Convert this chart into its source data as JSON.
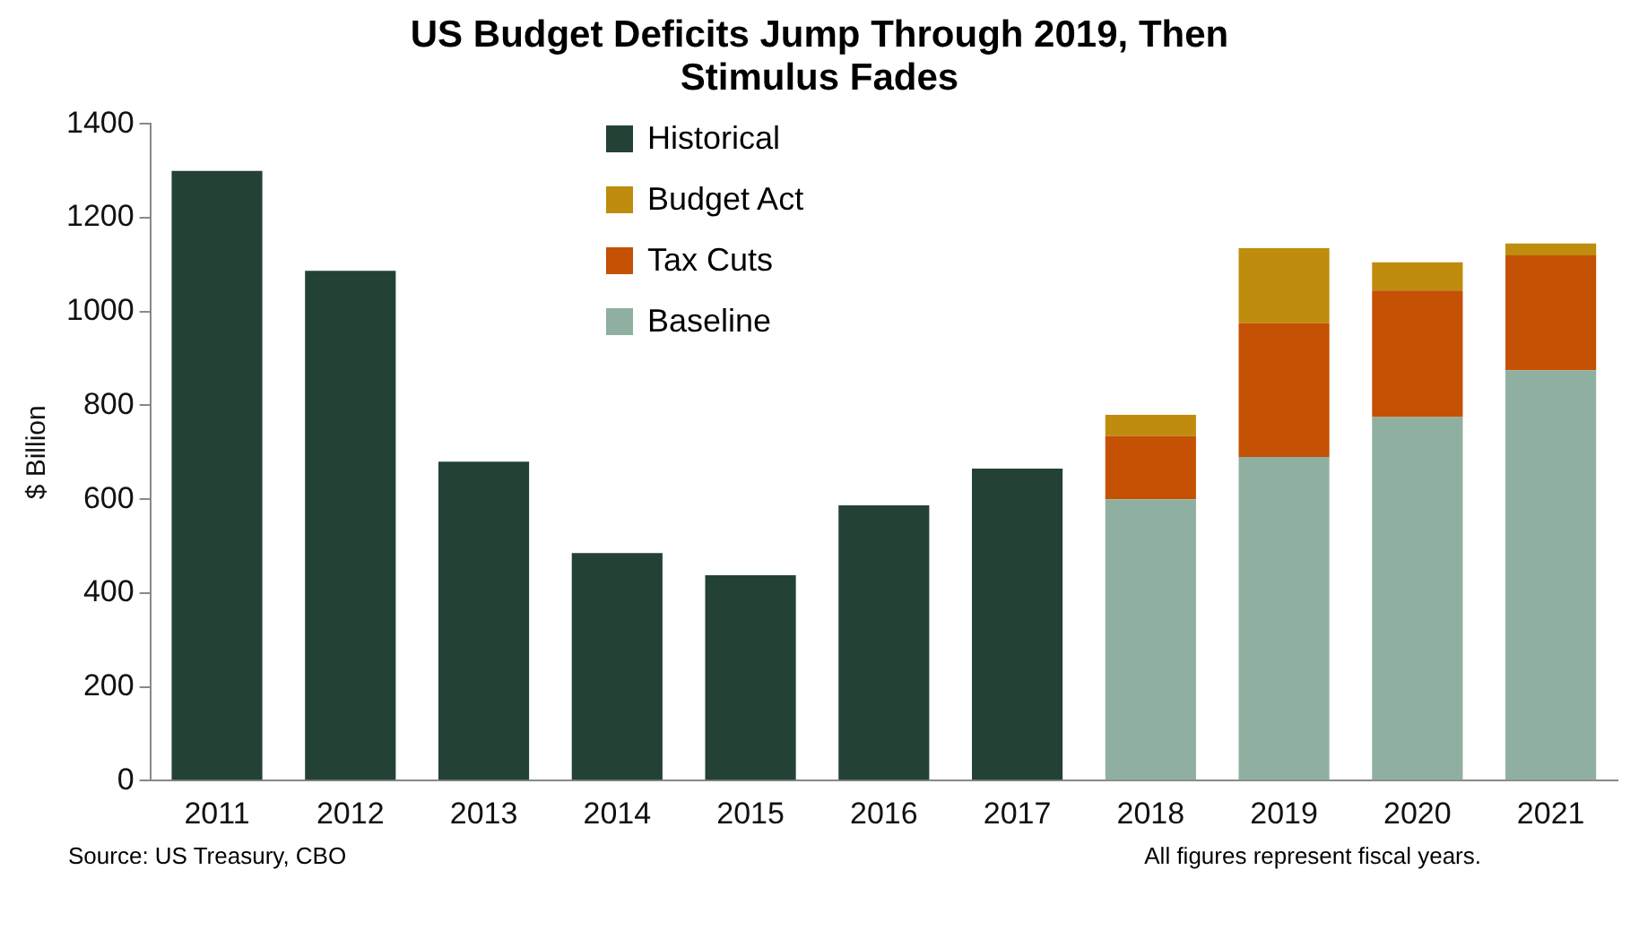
{
  "chart_data": {
    "type": "bar",
    "title": "US Budget Deficits Jump Through 2019, Then Stimulus Fades",
    "ylabel": "$ Billion",
    "categories": [
      "2011",
      "2012",
      "2013",
      "2014",
      "2015",
      "2016",
      "2017",
      "2018",
      "2019",
      "2020",
      "2021"
    ],
    "stacked": true,
    "series": [
      {
        "name": "Historical",
        "color": "#234235",
        "values": [
          1300,
          1087,
          680,
          485,
          438,
          587,
          665,
          null,
          null,
          null,
          null
        ]
      },
      {
        "name": "Baseline",
        "color": "#8fb0a0",
        "values": [
          null,
          null,
          null,
          null,
          null,
          null,
          null,
          600,
          690,
          775,
          875
        ]
      },
      {
        "name": "Tax Cuts",
        "color": "#c45104",
        "values": [
          null,
          null,
          null,
          null,
          null,
          null,
          null,
          135,
          285,
          270,
          245
        ]
      },
      {
        "name": "Budget Act",
        "color": "#bf8c0e",
        "values": [
          null,
          null,
          null,
          null,
          null,
          null,
          null,
          45,
          160,
          60,
          25
        ]
      }
    ],
    "ylim": [
      0,
      1400
    ],
    "yticks": [
      0,
      200,
      400,
      600,
      800,
      1000,
      1200,
      1400
    ],
    "grid": false,
    "legend": "top left",
    "annotations": [
      "Source: US Treasury, CBO",
      "All figures represent fiscal years."
    ]
  }
}
